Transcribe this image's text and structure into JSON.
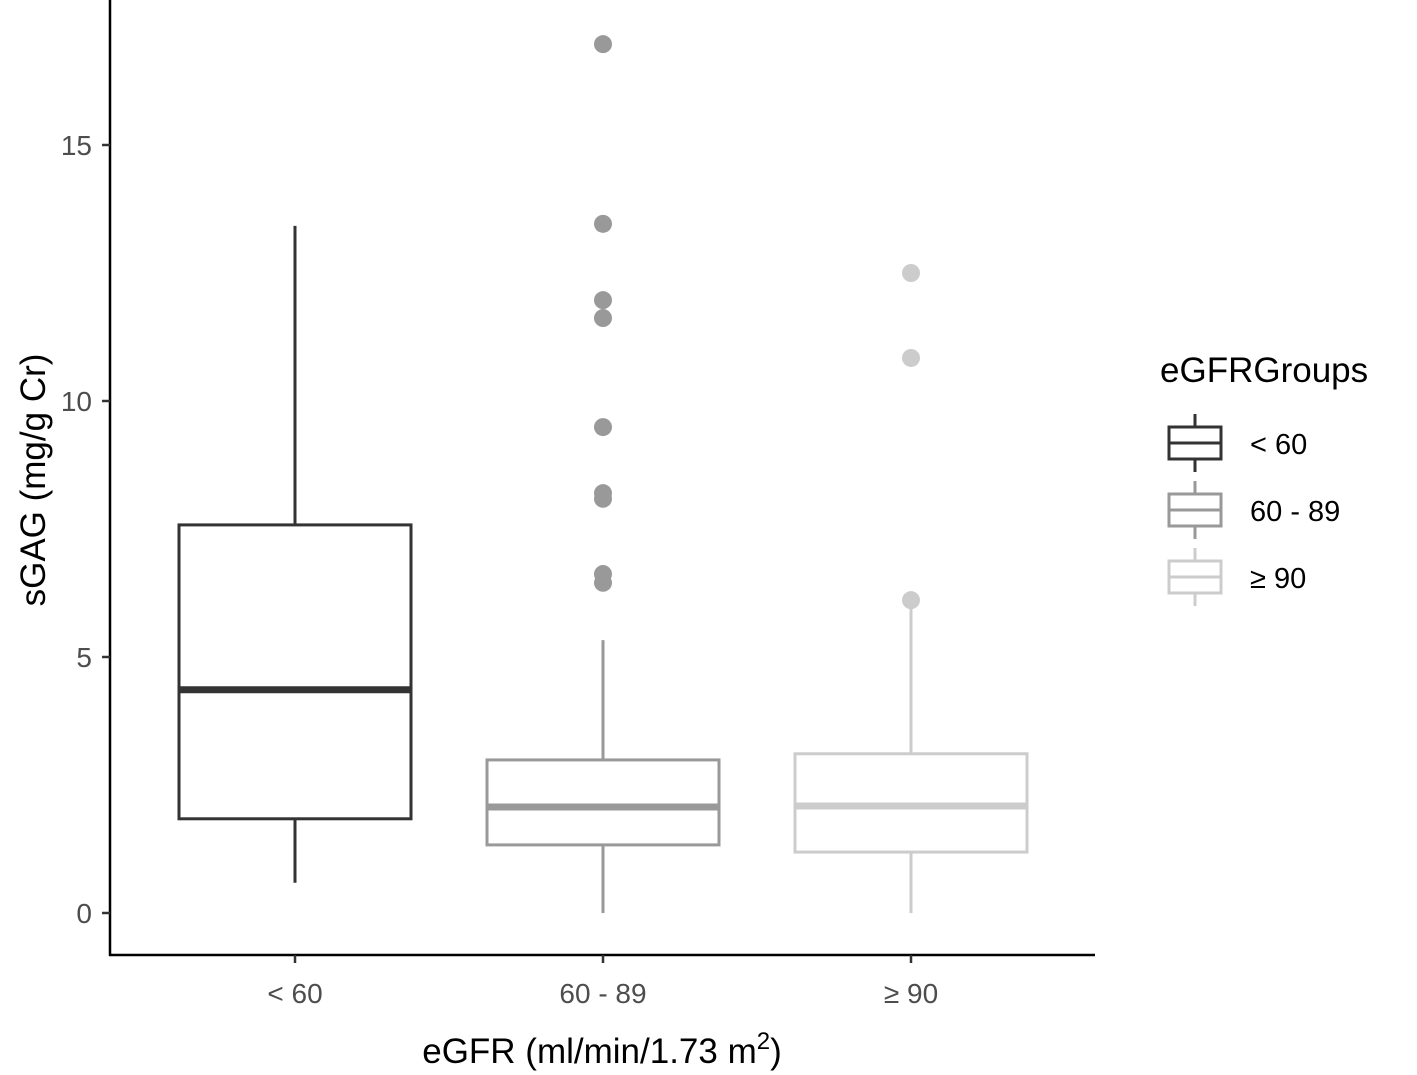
{
  "chart_data": {
    "type": "box",
    "title": "",
    "xlabel": "eGFR (ml/min/1.73 m",
    "xlabel_sup": "2",
    "xlabel_close": ")",
    "ylabel": "sGAG (mg/g Cr)",
    "ylim": [
      -0.9,
      17.8
    ],
    "yticks": [
      0,
      5,
      10,
      15
    ],
    "categories": [
      "< 60",
      "60 - 89",
      "≥ 90"
    ],
    "legend": {
      "title": "eGFRGroups",
      "position": "right",
      "entries": [
        "< 60",
        "60 - 89",
        "≥ 90"
      ]
    },
    "colors": [
      "#333333",
      "#999999",
      "#cccccc"
    ],
    "series": [
      {
        "name": "< 60",
        "whisker_low": 0.59,
        "q1": 1.84,
        "median": 4.36,
        "q3": 7.58,
        "whisker_high": 13.42,
        "outliers": []
      },
      {
        "name": "60 - 89",
        "whisker_low": 0.0,
        "q1": 1.33,
        "median": 2.07,
        "q3": 2.99,
        "whisker_high": 5.33,
        "outliers": [
          16.97,
          13.46,
          11.97,
          11.62,
          9.49,
          8.2,
          8.09,
          6.62,
          6.45
        ]
      },
      {
        "name": "≥ 90",
        "whisker_low": 0.0,
        "q1": 1.19,
        "median": 2.09,
        "q3": 3.11,
        "whisker_high": 6.0,
        "outliers": [
          12.5,
          10.84,
          6.11
        ]
      }
    ]
  }
}
